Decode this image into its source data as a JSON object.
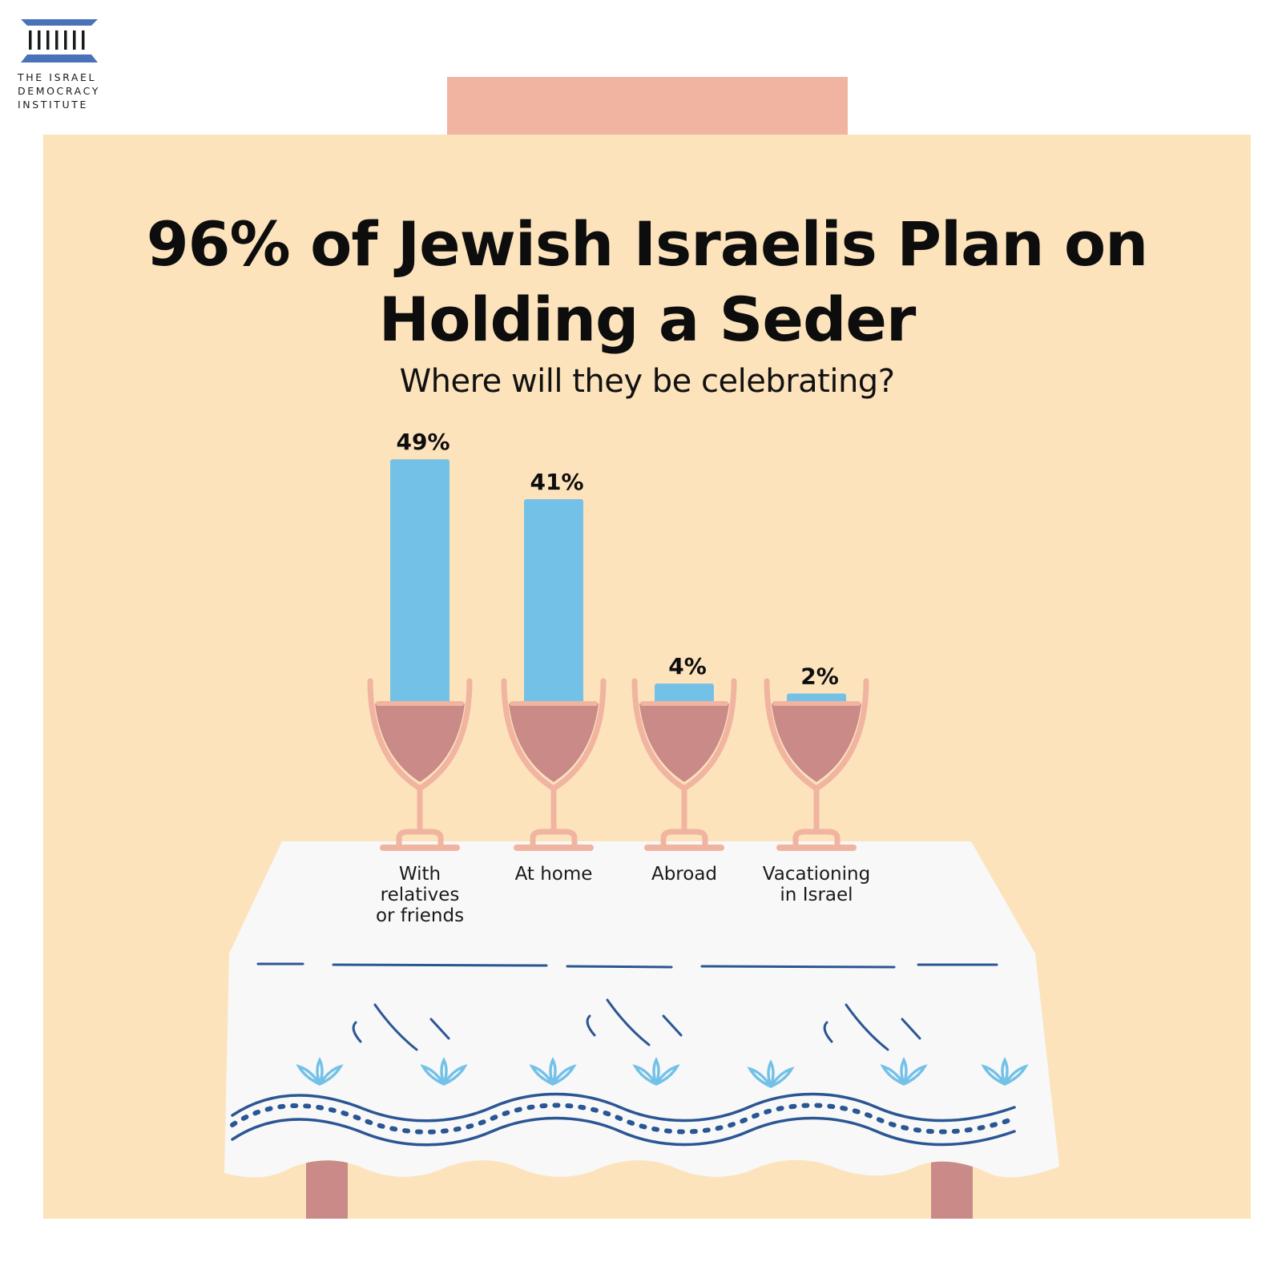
{
  "logo": {
    "line1": "THE ISRAEL",
    "line2": "DEMOCRACY",
    "line3": "INSTITUTE",
    "icon": "columns-building-icon",
    "color": "#4a72b8"
  },
  "header": {
    "title": "96% of Jewish Israelis Plan on Holding a Seder",
    "subtitle": "Where will they be celebrating?"
  },
  "colors": {
    "background": "#ffffff",
    "panel": "#fce3bc",
    "tab": "#f0b4a1",
    "bar": "#74c1e8",
    "wine": "#c98a88",
    "glass": "#f0b4a1",
    "tablecloth": "#f8f8f8",
    "pattern_dark": "#2b5694",
    "pattern_light": "#74c1e8",
    "table_legs": "#c98a88"
  },
  "chart_data": {
    "type": "bar",
    "title": "96% of Jewish Israelis Plan on Holding a Seder",
    "subtitle": "Where will they be celebrating?",
    "categories": [
      "With relatives or friends",
      "At home",
      "Abroad",
      "Vacationing in Israel"
    ],
    "category_lines": [
      [
        "With",
        "relatives",
        "or friends"
      ],
      [
        "At home"
      ],
      [
        "Abroad"
      ],
      [
        "Vacationing",
        "in Israel"
      ]
    ],
    "values": [
      49,
      41,
      4,
      2
    ],
    "value_labels": [
      "49%",
      "41%",
      "4%",
      "2%"
    ],
    "unit": "%",
    "xlabel": "",
    "ylabel": "",
    "grid": false,
    "legend": "none"
  }
}
